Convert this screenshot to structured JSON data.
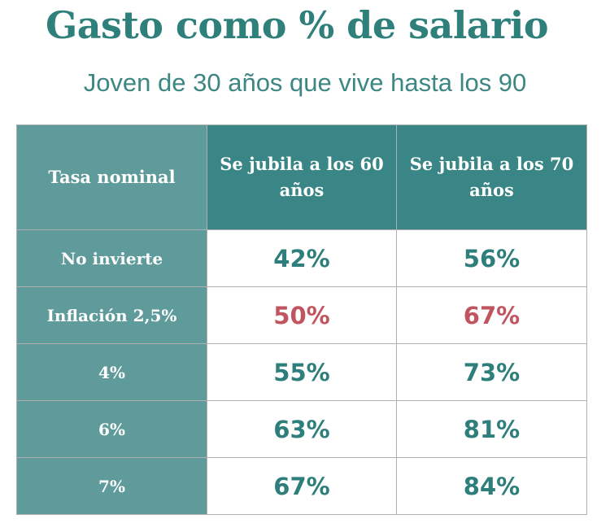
{
  "title": "Gasto como % de salario",
  "subtitle": "Joven de 30 años que vive hasta los 90",
  "table": {
    "headers": [
      "Tasa nominal",
      "Se jubila a los 60 años",
      "Se jubila a los 70 años"
    ],
    "rows": [
      {
        "label": "No invierte",
        "v60": "42%",
        "v70": "56%"
      },
      {
        "label": "Inflación 2,5%",
        "v60": "50%",
        "v70": "67%"
      },
      {
        "label": "4%",
        "v60": "55%",
        "v70": "73%"
      },
      {
        "label": "6%",
        "v60": "63%",
        "v70": "81%"
      },
      {
        "label": "7%",
        "v60": "67%",
        "v70": "84%"
      }
    ]
  },
  "colors": {
    "teal": "#2e7f7b",
    "highlight_red": "#c05560",
    "header": "#3a8686",
    "row_header": "#5e9b9a"
  }
}
